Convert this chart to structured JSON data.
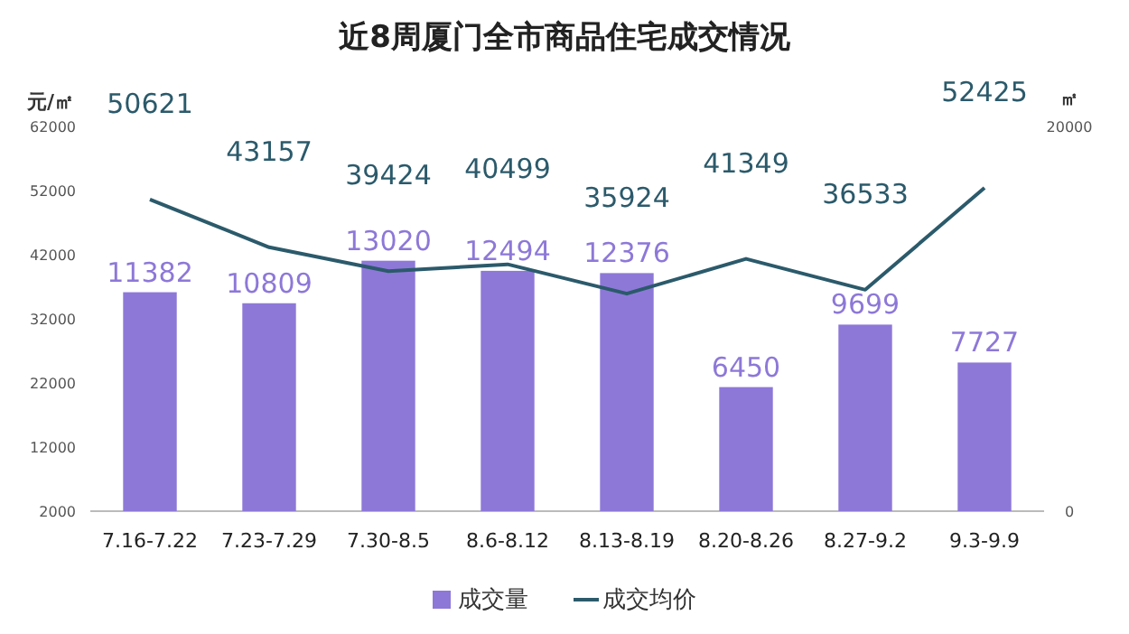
{
  "chart_data": {
    "type": "bar",
    "title": "近8周厦门全市商品住宅成交情况",
    "categories": [
      "7.16-7.22",
      "7.23-7.29",
      "7.30-8.5",
      "8.6-8.12",
      "8.13-8.19",
      "8.20-8.26",
      "8.27-9.2",
      "9.3-9.9"
    ],
    "series": [
      {
        "name": "成交量",
        "axis": "y2",
        "color": "#8d78d8",
        "values": [
          11382,
          10809,
          13020,
          12494,
          12376,
          6450,
          9699,
          7727
        ]
      },
      {
        "name": "成交均价",
        "type": "line",
        "axis": "y",
        "color": "#2b5a6b",
        "values": [
          50621,
          43157,
          39424,
          40499,
          35924,
          41349,
          36533,
          52425
        ]
      }
    ],
    "ylabel": "元/㎡",
    "y2label": "㎡",
    "ylim": [
      2000,
      62000
    ],
    "yticks": [
      2000,
      12000,
      22000,
      32000,
      42000,
      52000,
      62000
    ],
    "y2lim": [
      0,
      20000
    ],
    "y2ticks": [
      0,
      20000
    ],
    "data_labels": true,
    "legend": "bottom"
  }
}
